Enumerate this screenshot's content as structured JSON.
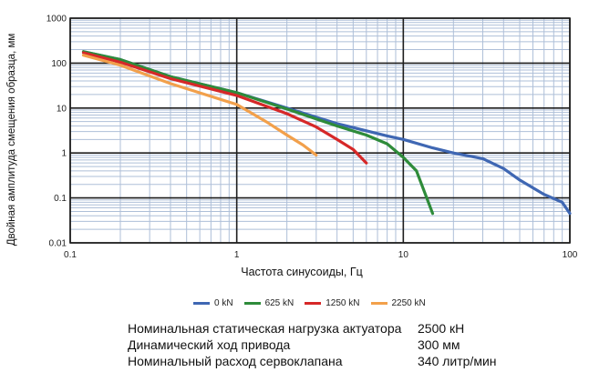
{
  "chart_data": {
    "type": "line",
    "title": "",
    "xlabel": "Частота синусоиды, Гц",
    "ylabel": "Двойная амплитуда смещения образца, мм",
    "xscale": "log",
    "yscale": "log",
    "xlim": [
      0.1,
      100
    ],
    "ylim": [
      0.01,
      1000
    ],
    "x_ticks": [
      "0.1",
      "1",
      "10",
      "100"
    ],
    "y_ticks": [
      "0.01",
      "0.1",
      "1",
      "10",
      "100",
      "1000"
    ],
    "grid": true,
    "legend_position": "bottom",
    "series": [
      {
        "name": "0 kN",
        "color": "#3f67b3",
        "x": [
          0.12,
          0.2,
          0.4,
          1,
          2,
          4,
          8,
          10,
          15,
          20,
          30,
          40,
          50,
          70,
          90,
          100
        ],
        "y": [
          180,
          120,
          50,
          22,
          10,
          4.5,
          2.4,
          2.0,
          1.3,
          1.0,
          0.75,
          0.45,
          0.25,
          0.12,
          0.08,
          0.045
        ]
      },
      {
        "name": "625 kN",
        "color": "#2e8b3a",
        "x": [
          0.12,
          0.2,
          0.4,
          1,
          2,
          4,
          6,
          8,
          10,
          12,
          15
        ],
        "y": [
          180,
          120,
          50,
          22,
          9.5,
          4.0,
          2.5,
          1.6,
          0.8,
          0.4,
          0.045
        ]
      },
      {
        "name": "1250 kN",
        "color": "#d62828",
        "x": [
          0.12,
          0.2,
          0.4,
          1,
          2,
          3,
          4,
          5,
          6
        ],
        "y": [
          170,
          105,
          45,
          19,
          7.5,
          3.8,
          2.0,
          1.2,
          0.6
        ]
      },
      {
        "name": "2250 kN",
        "color": "#f2a04b",
        "x": [
          0.12,
          0.2,
          0.4,
          1,
          1.5,
          2,
          2.5,
          3
        ],
        "y": [
          150,
          90,
          35,
          12,
          5.0,
          2.5,
          1.5,
          0.9
        ]
      }
    ]
  },
  "specs": [
    {
      "label": "Номинальная статическая нагрузка актуатора",
      "value": "2500 кН"
    },
    {
      "label": "Динамический ход привода",
      "value": "300 мм"
    },
    {
      "label": "Номинальный расход сервоклапана",
      "value": "340 литр/мин"
    }
  ]
}
